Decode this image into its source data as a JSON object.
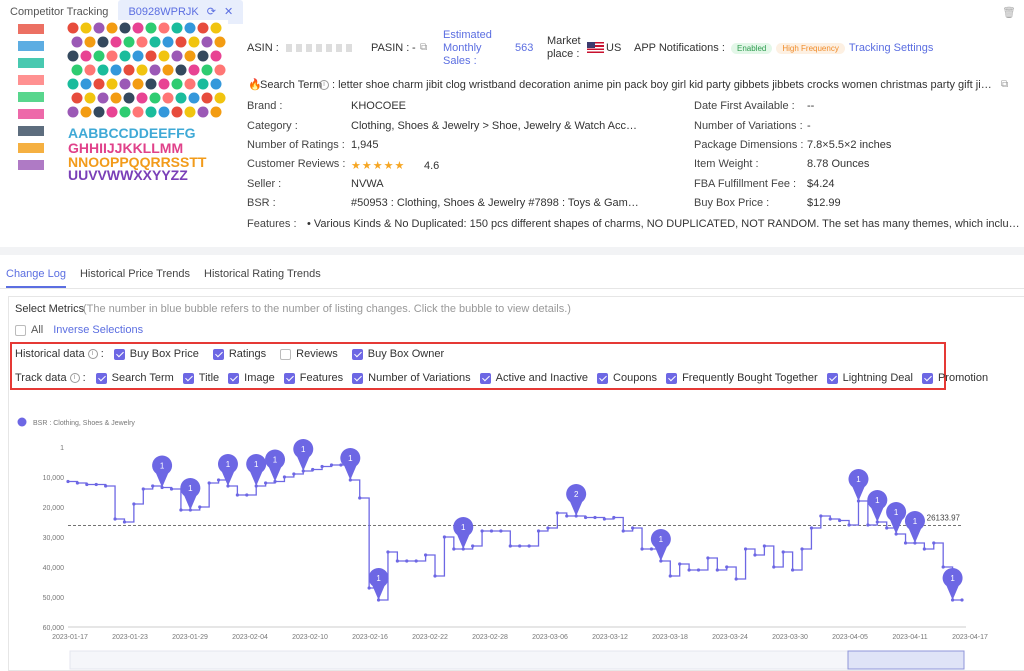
{
  "tabs": {
    "competitor": "Competitor Tracking",
    "asin_tab": "B0928WPRJK"
  },
  "header": {
    "asin_label": "ASIN :",
    "pasin_label": "PASIN :",
    "pasin_value": "-",
    "est_sales_label": "Estimated Monthly Sales :",
    "est_sales_value": "563",
    "marketplace_label": "Market place :",
    "marketplace_value": "US",
    "app_notif_label": "APP Notifications :",
    "badge_enabled": "Enabled",
    "badge_freq": "High Frequency",
    "tracking_settings": "Tracking Settings",
    "search_term_label": "Search Term",
    "search_term_value": ": letter shoe charm jibit clog wristband decoration anime pin pack boy girl kid party gibbets jibbets crocks women christmas party gift jiblets jibets ..."
  },
  "details": {
    "brand_label": "Brand :",
    "brand": "KHOCOEE",
    "category_label": "Category :",
    "category": "Clothing, Shoes & Jewelry > Shoe, Jewelry & Watch Accessorie...",
    "ratings_label": "Number of Ratings :",
    "ratings": "1,945",
    "reviews_label": "Customer Reviews :",
    "reviews": "4.6",
    "stars": "★★★★★",
    "seller_label": "Seller :",
    "seller": "NVWA",
    "bsr_label": "BSR :",
    "bsr": "#50953 : Clothing, Shoes & Jewelry #7898 : Toys & Games #34...",
    "features_label": "Features :",
    "features": "• Various Kinds & No Duplicated: 150 pcs different shapes of charms, NO DUPLICATED, NOT RANDOM. The set has many themes, which includes fruits, flower...",
    "date_label": "Date First Available :",
    "date": "--",
    "variations_label": "Number of Variations :",
    "variations": "-",
    "dims_label": "Package Dimensions :",
    "dims": "7.8×5.5×2 inches",
    "weight_label": "Item Weight :",
    "weight": "8.78 Ounces",
    "fba_label": "FBA Fulfillment Fee :",
    "fba": "$4.24",
    "buybox_label": "Buy Box Price :",
    "buybox": "$12.99"
  },
  "content_tabs": [
    "Change Log",
    "Historical Price Trends",
    "Historical Rating Trends"
  ],
  "metrics": {
    "title": "Select Metrics",
    "hint": "(The number in blue bubble refers to the number of listing changes. Click the bubble to view details.)",
    "all": "All",
    "inverse": "Inverse Selections",
    "historical_label": "Historical data",
    "track_label": "Track data",
    "historical": [
      {
        "label": "Buy Box Price",
        "on": true
      },
      {
        "label": "Ratings",
        "on": true
      },
      {
        "label": "Reviews",
        "on": false
      },
      {
        "label": "Buy Box Owner",
        "on": true
      }
    ],
    "track": [
      {
        "label": "Search Term",
        "on": true
      },
      {
        "label": "Title",
        "on": true
      },
      {
        "label": "Image",
        "on": true
      },
      {
        "label": "Features",
        "on": true
      },
      {
        "label": "Number of Variations",
        "on": true
      },
      {
        "label": "Active and Inactive",
        "on": true
      },
      {
        "label": "Coupons",
        "on": true
      },
      {
        "label": "Frequently Bought Together",
        "on": true
      },
      {
        "label": "Lightning Deal",
        "on": true
      },
      {
        "label": "Promotion",
        "on": true
      }
    ]
  },
  "chart_data": {
    "type": "line",
    "legend": "BSR : Clothing, Shoes & Jewelry",
    "series_color": "#6d67e4",
    "y_ticks": [
      "1",
      "10,000",
      "20,000",
      "30,000",
      "40,000",
      "50,000",
      "60,000"
    ],
    "ylim": [
      1,
      60000
    ],
    "y_reversed": true,
    "x_ticks": [
      "2023-01-17",
      "2023-01-23",
      "2023-01-29",
      "2023-02-04",
      "2023-02-10",
      "2023-02-16",
      "2023-02-22",
      "2023-02-28",
      "2023-03-06",
      "2023-03-12",
      "2023-03-18",
      "2023-03-24",
      "2023-03-30",
      "2023-04-05",
      "2023-04-11",
      "2023-04-17"
    ],
    "reference_value": 26133.97,
    "reference_label": "26133.97",
    "values": [
      11500,
      12000,
      12500,
      12500,
      13000,
      24000,
      25000,
      19000,
      14000,
      13000,
      13500,
      14000,
      21000,
      21000,
      20000,
      12000,
      11000,
      13000,
      16000,
      16000,
      13000,
      12000,
      11500,
      10000,
      9000,
      8000,
      7500,
      6500,
      6000,
      6000,
      11000,
      17000,
      47000,
      51000,
      35000,
      38000,
      38000,
      38000,
      36000,
      43000,
      30000,
      34000,
      34000,
      33000,
      28000,
      28000,
      28000,
      33000,
      33000,
      33000,
      28000,
      27000,
      22000,
      23000,
      23000,
      23500,
      23500,
      24000,
      23500,
      28000,
      27000,
      34000,
      34000,
      38000,
      43000,
      39000,
      41000,
      41000,
      37000,
      41000,
      40000,
      44000,
      34000,
      36000,
      33000,
      40000,
      35000,
      41000,
      34000,
      27000,
      23000,
      24000,
      24500,
      26000,
      18000,
      26000,
      25000,
      27000,
      29000,
      32000,
      32000,
      34000,
      32000,
      40000,
      51000,
      51000
    ],
    "bubbles": [
      {
        "label": "1",
        "i": 15
      },
      {
        "label": "1",
        "i": 21
      },
      {
        "label": "1",
        "i": 27
      },
      {
        "label": "1",
        "i": 32
      },
      {
        "label": "1",
        "i": 34
      },
      {
        "label": "1",
        "i": 40
      },
      {
        "label": "1",
        "i": 47
      },
      {
        "label": "1",
        "i": 52
      },
      {
        "label": "1",
        "i": 67
      },
      {
        "label": "2",
        "i": 86
      },
      {
        "label": "1",
        "i": 100
      },
      {
        "label": "1",
        "i": 133
      },
      {
        "label": "1",
        "i": 136
      },
      {
        "label": "1",
        "i": 139
      },
      {
        "label": "1",
        "i": 142
      },
      {
        "label": "1",
        "i": 149
      }
    ]
  }
}
